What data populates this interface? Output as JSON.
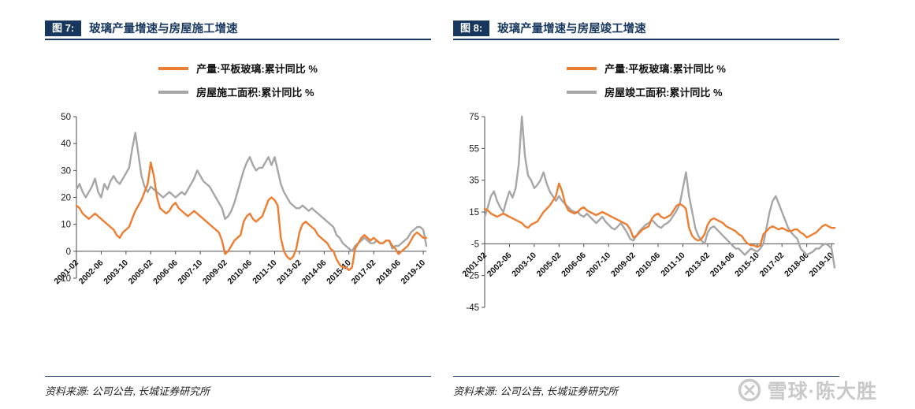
{
  "theme": {
    "navy": "#17375E",
    "orange": "#ED7D31",
    "gray": "#A6A6A6",
    "watermark_gray": "#C9C9C9",
    "axis": "#4D4D4D"
  },
  "watermark": {
    "text": "雪球·陈大胜",
    "logo": "xueqiu-logo"
  },
  "panels": [
    {
      "figure_label": "图 7:",
      "title": "玻璃产量增速与房屋施工增速",
      "legend": [
        "产量:平板玻璃:累计同比 %",
        "房屋施工面积:累计同比 %"
      ],
      "source": "资料来源: 公司公告, 长城证券研究所"
    },
    {
      "figure_label": "图 8:",
      "title": "玻璃产量增速与房屋竣工增速",
      "legend": [
        "产量:平板玻璃:累计同比 %",
        "房屋竣工面积:累计同比 %"
      ],
      "source": "资料来源: 公司公告, 长城证券研究所"
    }
  ],
  "chart_data": [
    {
      "type": "line",
      "title": "玻璃产量增速与房屋施工增速",
      "x_start": "2001-02",
      "x_step_months": 2,
      "x_tick_months": [
        0,
        16,
        32,
        48,
        64,
        80,
        96,
        112,
        128,
        144,
        160,
        176,
        192,
        208,
        224
      ],
      "x_tick_labels": [
        "2001-02",
        "2002-06",
        "2003-10",
        "2005-02",
        "2006-06",
        "2007-10",
        "2009-02",
        "2010-06",
        "2011-10",
        "2013-02",
        "2014-06",
        "2015-10",
        "2017-02",
        "2018-06",
        "2019-10"
      ],
      "ylim": [
        -10,
        50
      ],
      "yticks": [
        50,
        40,
        30,
        20,
        10,
        0,
        -10
      ],
      "x_axis_at": 0,
      "grid": false,
      "legend_position": "top",
      "series": [
        {
          "name": "产量:平板玻璃:累计同比 %",
          "color": "#ED7D31",
          "values": [
            17,
            16,
            14,
            13,
            12,
            13,
            14,
            13,
            12,
            11,
            10,
            9,
            8,
            6,
            5,
            7,
            8,
            9,
            12,
            15,
            17,
            19,
            22,
            25,
            33,
            28,
            20,
            16,
            15,
            14,
            15,
            17,
            18,
            16,
            15,
            14,
            13,
            14,
            15,
            14,
            13,
            12,
            11,
            10,
            9,
            8,
            7,
            4,
            -1,
            0,
            2,
            4,
            5,
            6,
            11,
            13,
            14,
            12,
            11,
            12,
            13,
            16,
            19,
            20,
            19,
            17,
            5,
            0,
            -2,
            -3,
            -2,
            1,
            7,
            10,
            11,
            10,
            9,
            8,
            6,
            5,
            4,
            3,
            1,
            0,
            -3,
            -5,
            -6,
            -6,
            -7,
            -6,
            1,
            3,
            5,
            6,
            5,
            4,
            5,
            4,
            3,
            3,
            4,
            4,
            2,
            1,
            -1,
            0,
            1,
            2,
            4,
            6,
            7,
            6,
            5,
            5
          ]
        },
        {
          "name": "房屋施工面积:累计同比 %",
          "color": "#A6A6A6",
          "values": [
            23,
            25,
            22,
            20,
            22,
            24,
            27,
            22,
            20,
            25,
            23,
            26,
            28,
            26,
            25,
            27,
            29,
            31,
            38,
            44,
            36,
            28,
            24,
            22,
            24,
            23,
            22,
            21,
            20,
            21,
            22,
            21,
            20,
            21,
            22,
            21,
            23,
            25,
            27,
            30,
            28,
            26,
            25,
            24,
            22,
            20,
            18,
            16,
            12,
            13,
            15,
            18,
            22,
            26,
            30,
            33,
            35,
            32,
            30,
            31,
            31,
            33,
            35,
            32,
            35,
            30,
            25,
            22,
            20,
            18,
            17,
            16,
            16,
            17,
            16,
            15,
            16,
            15,
            14,
            13,
            12,
            11,
            10,
            9,
            6,
            5,
            3,
            2,
            1,
            0,
            2,
            3,
            4,
            5,
            4,
            3,
            3,
            4,
            3,
            3,
            4,
            4,
            1,
            2,
            2,
            3,
            4,
            5,
            7,
            8,
            9,
            9,
            8,
            2
          ]
        }
      ]
    },
    {
      "type": "line",
      "title": "玻璃产量增速与房屋竣工增速",
      "x_start": "2001-02",
      "x_step_months": 2,
      "x_tick_months": [
        0,
        16,
        32,
        48,
        64,
        80,
        96,
        112,
        128,
        144,
        160,
        176,
        192,
        208,
        224
      ],
      "x_tick_labels": [
        "2001-02",
        "2002-06",
        "2003-10",
        "2005-02",
        "2006-06",
        "2007-10",
        "2009-02",
        "2010-06",
        "2011-10",
        "2013-02",
        "2014-06",
        "2015-10",
        "2017-02",
        "2018-06",
        "2019-10"
      ],
      "ylim": [
        -45,
        75
      ],
      "yticks": [
        75,
        55,
        35,
        15,
        -5,
        -25,
        -45
      ],
      "x_axis_at": -5,
      "grid": false,
      "legend_position": "top",
      "series": [
        {
          "name": "产量:平板玻璃:累计同比 %",
          "color": "#ED7D31",
          "values": [
            17,
            16,
            14,
            13,
            12,
            13,
            14,
            13,
            12,
            11,
            10,
            9,
            8,
            6,
            5,
            7,
            8,
            9,
            12,
            15,
            17,
            19,
            22,
            25,
            33,
            28,
            20,
            16,
            15,
            14,
            15,
            17,
            18,
            16,
            15,
            14,
            13,
            14,
            15,
            14,
            13,
            12,
            11,
            10,
            9,
            8,
            7,
            4,
            -1,
            0,
            2,
            4,
            5,
            6,
            11,
            13,
            14,
            12,
            11,
            12,
            13,
            16,
            19,
            20,
            19,
            17,
            5,
            0,
            -2,
            -3,
            -2,
            1,
            7,
            10,
            11,
            10,
            9,
            8,
            6,
            5,
            4,
            3,
            1,
            0,
            -3,
            -5,
            -6,
            -6,
            -7,
            -6,
            1,
            3,
            5,
            6,
            5,
            4,
            5,
            4,
            3,
            3,
            4,
            4,
            2,
            1,
            -1,
            0,
            1,
            2,
            4,
            6,
            7,
            6,
            5,
            5
          ]
        },
        {
          "name": "房屋竣工面积:累计同比 %",
          "color": "#A6A6A6",
          "values": [
            12,
            18,
            25,
            28,
            22,
            18,
            15,
            22,
            28,
            24,
            30,
            45,
            75,
            50,
            38,
            35,
            30,
            32,
            35,
            40,
            33,
            28,
            25,
            22,
            25,
            22,
            20,
            18,
            16,
            15,
            15,
            13,
            12,
            14,
            12,
            10,
            8,
            10,
            12,
            9,
            7,
            5,
            4,
            6,
            8,
            5,
            2,
            -2,
            -3,
            0,
            3,
            5,
            7,
            8,
            10,
            8,
            6,
            5,
            7,
            8,
            10,
            13,
            16,
            20,
            30,
            40,
            25,
            15,
            5,
            0,
            -3,
            -5,
            2,
            5,
            6,
            4,
            2,
            0,
            -2,
            -4,
            -6,
            -8,
            -8,
            -10,
            -12,
            -10,
            -8,
            -9,
            -10,
            -8,
            -5,
            5,
            15,
            22,
            25,
            20,
            15,
            10,
            5,
            2,
            0,
            -2,
            -8,
            -10,
            -12,
            -11,
            -10,
            -8,
            -8,
            -6,
            -5,
            -6,
            -8,
            -20
          ]
        }
      ]
    }
  ]
}
